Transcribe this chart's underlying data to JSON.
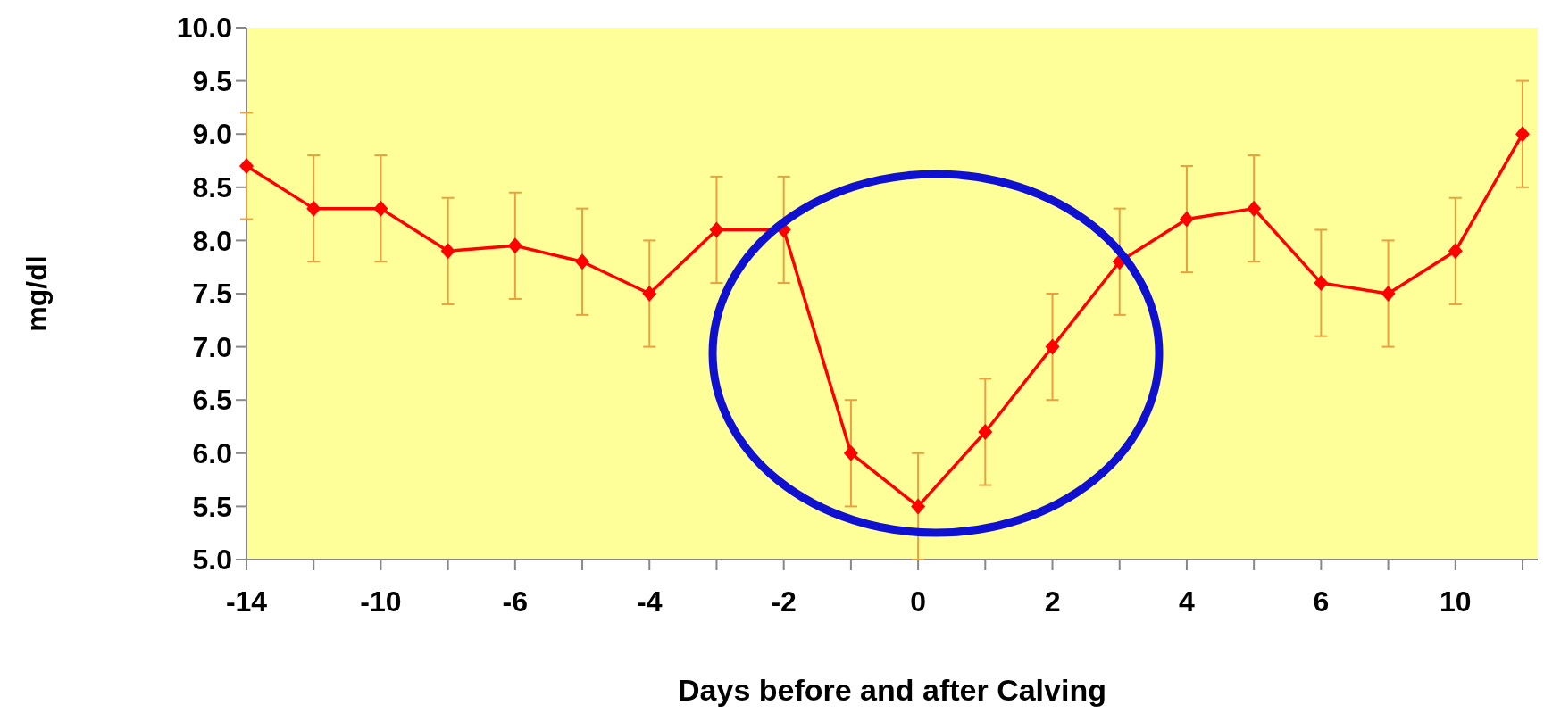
{
  "chart_data": {
    "type": "line",
    "xlabel": "Days before and after Calving",
    "ylabel": "mg/dl",
    "categories": [
      "-14",
      null,
      "-10",
      null,
      "-6",
      null,
      "-4",
      null,
      "-2",
      null,
      "0",
      null,
      "2",
      null,
      "4",
      null,
      "6",
      null,
      "10",
      null
    ],
    "series": [
      {
        "color": "#ff0000",
        "values": [
          8.7,
          8.3,
          8.3,
          7.9,
          7.95,
          7.8,
          7.5,
          8.1,
          8.1,
          6.0,
          5.5,
          6.2,
          7.0,
          7.8,
          8.2,
          8.3,
          7.6,
          7.5,
          7.9,
          9.0
        ],
        "errors": [
          0.5,
          0.5,
          0.5,
          0.5,
          0.5,
          0.5,
          0.5,
          0.5,
          0.5,
          0.5,
          0.5,
          0.5,
          0.5,
          0.5,
          0.5,
          0.5,
          0.5,
          0.5,
          0.5,
          0.5
        ]
      }
    ],
    "ylim": [
      5,
      10
    ],
    "yticks": [
      {
        "value": 5,
        "label": "5.0"
      },
      {
        "value": 5.5,
        "label": "5.5"
      },
      {
        "value": 6,
        "label": "6.0"
      },
      {
        "value": 6.5,
        "label": "6.5"
      },
      {
        "value": 7,
        "label": "7.0"
      },
      {
        "value": 7.5,
        "label": "7.5"
      },
      {
        "value": 8,
        "label": "8.0"
      },
      {
        "value": 8.5,
        "label": "8.5"
      },
      {
        "value": 9,
        "label": "9.0"
      },
      {
        "value": 9.5,
        "label": "9.5"
      },
      {
        "value": 10,
        "label": "10.0"
      }
    ],
    "grid": false,
    "marker": "diamond",
    "line_style": "solid"
  }
}
